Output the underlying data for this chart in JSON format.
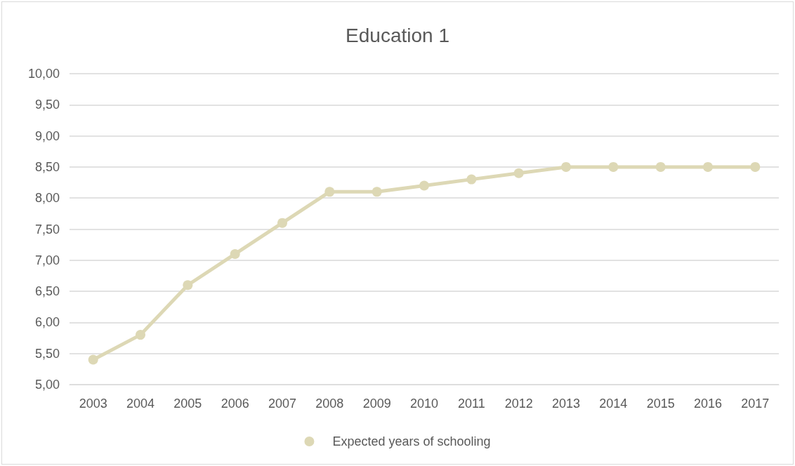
{
  "chart_data": {
    "type": "line",
    "title": "Education 1",
    "categories": [
      "2003",
      "2004",
      "2005",
      "2006",
      "2007",
      "2008",
      "2009",
      "2010",
      "2011",
      "2012",
      "2013",
      "2014",
      "2015",
      "2016",
      "2017"
    ],
    "series": [
      {
        "name": "Expected years of schooling",
        "color": "#ddd8b5",
        "values": [
          5.4,
          5.8,
          6.6,
          7.1,
          7.6,
          8.1,
          8.1,
          8.2,
          8.3,
          8.4,
          8.5,
          8.5,
          8.5,
          8.5,
          8.5
        ]
      }
    ],
    "ylim": [
      5,
      10
    ],
    "yticks": [
      {
        "value": 5,
        "label": "5,00"
      },
      {
        "value": 5.5,
        "label": "5,50"
      },
      {
        "value": 6,
        "label": "6,00"
      },
      {
        "value": 6.5,
        "label": "6,50"
      },
      {
        "value": 7,
        "label": "7,00"
      },
      {
        "value": 7.5,
        "label": "7,50"
      },
      {
        "value": 8,
        "label": "8,00"
      },
      {
        "value": 8.5,
        "label": "8,50"
      },
      {
        "value": 9,
        "label": "9,00"
      },
      {
        "value": 9.5,
        "label": "9,50"
      },
      {
        "value": 10,
        "label": "10,00"
      }
    ],
    "grid": "y",
    "legend": "bottom",
    "marker": "circle",
    "line_style": "solid"
  }
}
